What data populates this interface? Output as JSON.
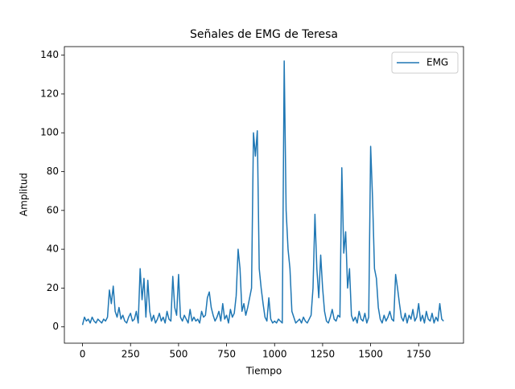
{
  "chart_data": {
    "type": "line",
    "title": "Señales de EMG de Teresa",
    "xlabel": "Tiempo",
    "ylabel": "Amplitud",
    "x": [
      0,
      10,
      20,
      30,
      40,
      50,
      60,
      70,
      80,
      90,
      100,
      110,
      120,
      130,
      140,
      150,
      160,
      170,
      180,
      190,
      200,
      210,
      220,
      230,
      240,
      250,
      260,
      270,
      280,
      290,
      300,
      310,
      320,
      330,
      340,
      350,
      360,
      370,
      380,
      390,
      400,
      410,
      420,
      430,
      440,
      450,
      460,
      470,
      480,
      490,
      500,
      510,
      520,
      530,
      540,
      550,
      560,
      570,
      580,
      590,
      600,
      610,
      620,
      630,
      640,
      650,
      660,
      670,
      680,
      690,
      700,
      710,
      720,
      730,
      740,
      750,
      760,
      770,
      780,
      790,
      800,
      810,
      820,
      830,
      840,
      850,
      860,
      870,
      880,
      890,
      900,
      910,
      920,
      930,
      940,
      950,
      960,
      970,
      980,
      990,
      1000,
      1010,
      1020,
      1030,
      1040,
      1050,
      1060,
      1070,
      1080,
      1090,
      1100,
      1110,
      1120,
      1130,
      1140,
      1150,
      1160,
      1170,
      1180,
      1190,
      1200,
      1210,
      1220,
      1230,
      1240,
      1250,
      1260,
      1270,
      1280,
      1290,
      1300,
      1310,
      1320,
      1330,
      1340,
      1350,
      1360,
      1370,
      1380,
      1390,
      1400,
      1410,
      1420,
      1430,
      1440,
      1450,
      1460,
      1470,
      1480,
      1490,
      1500,
      1510,
      1520,
      1530,
      1540,
      1550,
      1560,
      1570,
      1580,
      1590,
      1600,
      1610,
      1620,
      1630,
      1640,
      1650,
      1660,
      1670,
      1680,
      1690,
      1700,
      1710,
      1720,
      1730,
      1740,
      1750,
      1760,
      1770,
      1780,
      1790,
      1800,
      1810,
      1820,
      1830,
      1840,
      1850,
      1860,
      1870,
      1880
    ],
    "series": [
      {
        "name": "EMG",
        "color": "#1f77b4",
        "values": [
          1,
          5,
          3,
          4,
          2,
          5,
          3,
          2,
          4,
          3,
          2,
          4,
          3,
          5,
          19,
          12,
          21,
          8,
          5,
          10,
          4,
          6,
          3,
          2,
          5,
          7,
          3,
          4,
          8,
          2,
          30,
          14,
          25,
          5,
          24,
          8,
          3,
          6,
          2,
          4,
          7,
          3,
          5,
          2,
          8,
          4,
          3,
          26,
          10,
          6,
          27,
          5,
          3,
          6,
          4,
          2,
          9,
          3,
          5,
          3,
          4,
          2,
          8,
          5,
          6,
          15,
          18,
          10,
          6,
          3,
          5,
          8,
          3,
          12,
          4,
          6,
          2,
          9,
          5,
          7,
          16,
          40,
          30,
          8,
          12,
          6,
          10,
          15,
          20,
          100,
          88,
          101,
          30,
          20,
          12,
          5,
          3,
          15,
          4,
          2,
          3,
          2,
          4,
          3,
          2,
          137,
          60,
          40,
          30,
          8,
          5,
          2,
          3,
          4,
          2,
          5,
          3,
          2,
          4,
          6,
          20,
          58,
          30,
          15,
          37,
          20,
          8,
          3,
          2,
          5,
          9,
          4,
          3,
          6,
          5,
          82,
          38,
          49,
          20,
          30,
          6,
          3,
          5,
          2,
          8,
          4,
          3,
          7,
          2,
          5,
          93,
          66,
          30,
          25,
          10,
          4,
          2,
          6,
          3,
          5,
          8,
          4,
          3,
          27,
          20,
          12,
          5,
          3,
          7,
          2,
          6,
          4,
          9,
          3,
          5,
          12,
          3,
          6,
          2,
          8,
          4,
          3,
          7,
          2,
          5,
          3,
          12,
          4,
          3
        ]
      }
    ],
    "xlim": [
      -94.45,
      1983.45
    ],
    "ylim": [
      -8.4,
      144.4
    ],
    "xticks": [
      0,
      250,
      500,
      750,
      1000,
      1250,
      1500,
      1750
    ],
    "yticks": [
      0,
      20,
      40,
      60,
      80,
      100,
      120,
      140
    ],
    "legend": "upper right"
  }
}
